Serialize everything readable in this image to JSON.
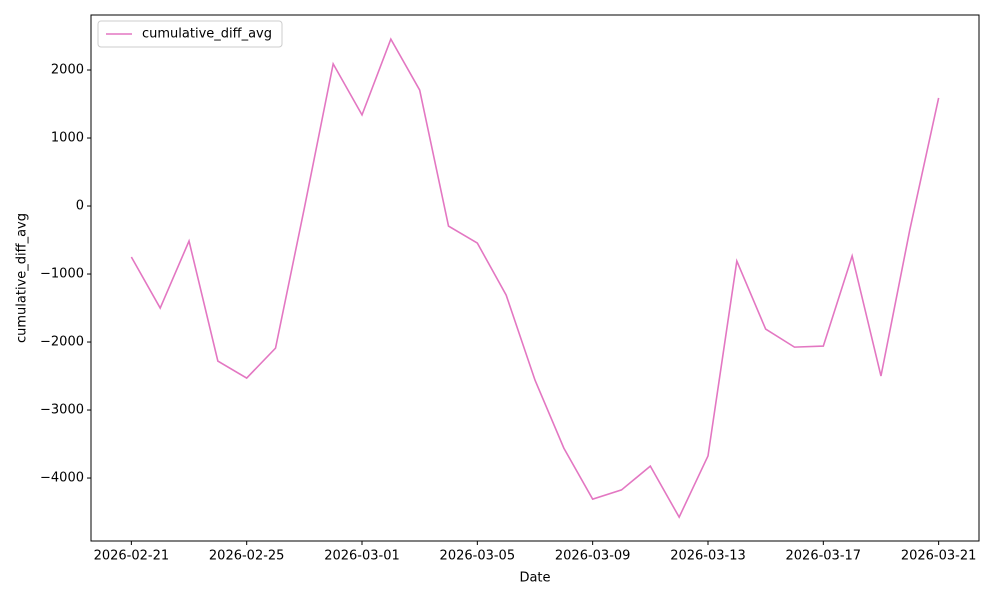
{
  "chart_data": {
    "type": "line",
    "xlabel": "Date",
    "ylabel": "cumulative_diff_avg",
    "x": [
      "2026-02-21",
      "2026-02-22",
      "2026-02-23",
      "2026-02-24",
      "2026-02-25",
      "2026-02-26",
      "2026-02-27",
      "2026-02-28",
      "2026-03-01",
      "2026-03-02",
      "2026-03-03",
      "2026-03-04",
      "2026-03-05",
      "2026-03-06",
      "2026-03-07",
      "2026-03-08",
      "2026-03-09",
      "2026-03-10",
      "2026-03-11",
      "2026-03-12",
      "2026-03-13",
      "2026-03-14",
      "2026-03-15",
      "2026-03-16",
      "2026-03-17",
      "2026-03-18",
      "2026-03-19",
      "2026-03-20",
      "2026-03-21"
    ],
    "series": [
      {
        "name": "cumulative_diff_avg",
        "color": "#e377c2",
        "values": [
          -750,
          -1500,
          -515,
          -2280,
          -2530,
          -2090,
          -30,
          2090,
          1340,
          2455,
          1705,
          -295,
          -545,
          -1310,
          -2560,
          -3560,
          -4310,
          -4175,
          -3825,
          -4575,
          -3675,
          -810,
          -1810,
          -2075,
          -2060,
          -735,
          -2500,
          -350,
          1590
        ]
      }
    ],
    "xlim": [
      "2026-02-19T14:24:00",
      "2026-03-22T09:36:00"
    ],
    "xticks": [
      "2026-02-21",
      "2026-02-25",
      "2026-03-01",
      "2026-03-05",
      "2026-03-09",
      "2026-03-13",
      "2026-03-17",
      "2026-03-21"
    ],
    "ylim": [
      -4926,
      2809
    ],
    "yticks": [
      {
        "value": -4000,
        "label": "−4000"
      },
      {
        "value": -3000,
        "label": "−3000"
      },
      {
        "value": -2000,
        "label": "−2000"
      },
      {
        "value": -1000,
        "label": "−1000"
      },
      0,
      1000,
      2000
    ],
    "legend": "upper left"
  }
}
